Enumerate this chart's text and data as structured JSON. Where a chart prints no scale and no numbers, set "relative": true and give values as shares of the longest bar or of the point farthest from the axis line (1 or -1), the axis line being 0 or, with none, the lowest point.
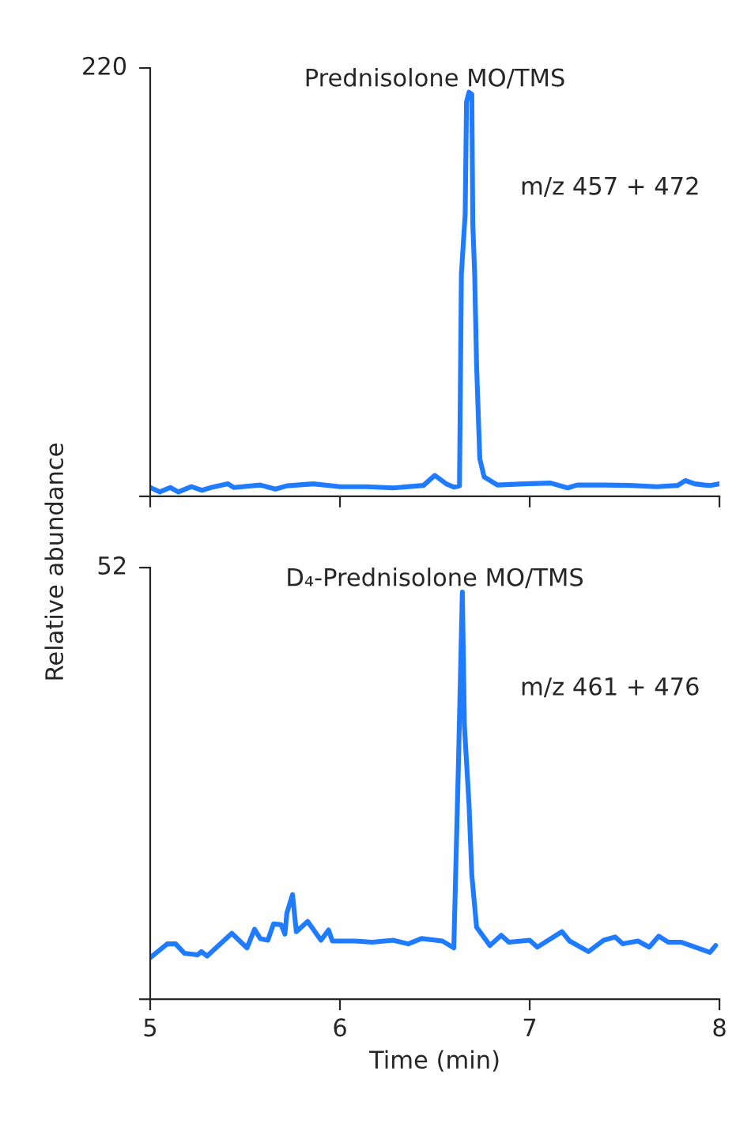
{
  "chart_data": [
    {
      "type": "line",
      "title": "Prednisolone MO/TMS",
      "ylabel": "Relative abundance",
      "annotations": [
        "220",
        "m/z 457 + 472"
      ],
      "relative": true,
      "xlim": [
        5,
        8
      ],
      "xticks": [
        5,
        6,
        7,
        8
      ],
      "tick_labels": false,
      "grid": false,
      "series": [
        {
          "color": "#1f7bff",
          "x": [
            5.0,
            5.05,
            5.106,
            5.148,
            5.217,
            5.273,
            5.33,
            5.41,
            5.44,
            5.58,
            5.66,
            5.72,
            5.86,
            6.0,
            6.14,
            6.28,
            6.44,
            6.5,
            6.56,
            6.6,
            6.63,
            6.64,
            6.66,
            6.667,
            6.68,
            6.695,
            6.7,
            6.71,
            6.72,
            6.737,
            6.76,
            6.83,
            6.97,
            7.11,
            7.2,
            7.25,
            7.39,
            7.53,
            7.67,
            7.78,
            7.82,
            7.87,
            7.92,
            7.95,
            8.0
          ],
          "values": [
            0.022,
            0.011,
            0.022,
            0.011,
            0.024,
            0.015,
            0.023,
            0.031,
            0.022,
            0.028,
            0.018,
            0.026,
            0.031,
            0.024,
            0.024,
            0.021,
            0.027,
            0.052,
            0.031,
            0.023,
            0.026,
            0.55,
            0.699,
            0.976,
            1,
            0.995,
            0.675,
            0.55,
            0.325,
            0.093,
            0.048,
            0.028,
            0.031,
            0.033,
            0.021,
            0.028,
            0.028,
            0.027,
            0.024,
            0.027,
            0.039,
            0.031,
            0.028,
            0.027,
            0.031
          ]
        }
      ]
    },
    {
      "type": "line",
      "title": "D₄-Prednisolone MO/TMS",
      "xlabel": "Time (min)",
      "annotations": [
        "52",
        "m/z 461 + 476"
      ],
      "relative": true,
      "xlim": [
        5,
        8
      ],
      "xticks": [
        5,
        6,
        7,
        8
      ],
      "tick_labels": "x",
      "grid": false,
      "series": [
        {
          "color": "#1f7bff",
          "x": [
            5.0,
            5.09,
            5.134,
            5.18,
            5.25,
            5.27,
            5.3,
            5.43,
            5.51,
            5.55,
            5.58,
            5.62,
            5.65,
            5.69,
            5.71,
            5.72,
            5.75,
            5.77,
            5.83,
            5.9,
            5.94,
            5.96,
            6.08,
            6.17,
            6.28,
            6.36,
            6.43,
            6.54,
            6.6,
            6.625,
            6.645,
            6.656,
            6.68,
            6.695,
            6.72,
            6.79,
            6.85,
            6.89,
            7.0,
            7.04,
            7.17,
            7.21,
            7.31,
            7.39,
            7.45,
            7.49,
            7.57,
            7.63,
            7.68,
            7.73,
            7.8,
            7.95,
            7.98
          ],
          "values": [
            0.102,
            0.136,
            0.136,
            0.113,
            0.109,
            0.117,
            0.106,
            0.162,
            0.126,
            0.172,
            0.149,
            0.145,
            0.185,
            0.183,
            0.16,
            0.211,
            0.257,
            0.166,
            0.191,
            0.145,
            0.17,
            0.143,
            0.143,
            0.14,
            0.145,
            0.136,
            0.149,
            0.143,
            0.126,
            0.589,
            1,
            0.67,
            0.481,
            0.304,
            0.177,
            0.132,
            0.157,
            0.14,
            0.145,
            0.128,
            0.166,
            0.143,
            0.117,
            0.145,
            0.153,
            0.136,
            0.143,
            0.128,
            0.155,
            0.14,
            0.14,
            0.115,
            0.132
          ]
        }
      ]
    }
  ]
}
